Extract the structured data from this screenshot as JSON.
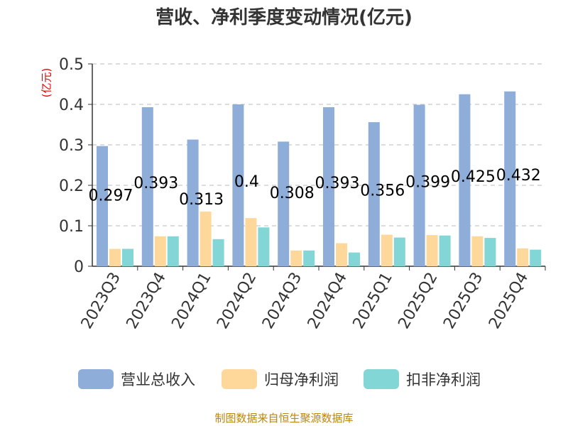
{
  "title": "营收、净利季度变动情况(亿元)",
  "unit_label": "(亿元)",
  "source": "制图数据来自恒生聚源数据库",
  "colors": {
    "revenue": "#8eadd8",
    "net_profit": "#fdd89a",
    "deducted_profit": "#83d6d6"
  },
  "chart_data": {
    "type": "bar",
    "categories": [
      "2023Q3",
      "2023Q4",
      "2024Q1",
      "2024Q2",
      "2024Q3",
      "2024Q4",
      "2025Q1",
      "2025Q2",
      "2025Q3",
      "2025Q4"
    ],
    "series": [
      {
        "name": "营业总收入",
        "values": [
          0.297,
          0.393,
          0.313,
          0.4,
          0.308,
          0.393,
          0.356,
          0.399,
          0.425,
          0.432
        ]
      },
      {
        "name": "归母净利润",
        "values": [
          0.043,
          0.074,
          0.135,
          0.119,
          0.039,
          0.057,
          0.078,
          0.077,
          0.074,
          0.044
        ]
      },
      {
        "name": "扣非净利润",
        "values": [
          0.043,
          0.074,
          0.067,
          0.096,
          0.039,
          0.034,
          0.071,
          0.076,
          0.07,
          0.041
        ]
      }
    ],
    "data_labels": [
      "0.297",
      "0.393",
      "0.313",
      "0.4",
      "0.308",
      "0.393",
      "0.356",
      "0.399",
      "0.425",
      "0.432"
    ],
    "yticks": [
      "0",
      "0.1",
      "0.2",
      "0.3",
      "0.4",
      "0.5"
    ],
    "ylim": [
      0,
      0.5
    ],
    "grid": true,
    "legend_position": "bottom"
  }
}
